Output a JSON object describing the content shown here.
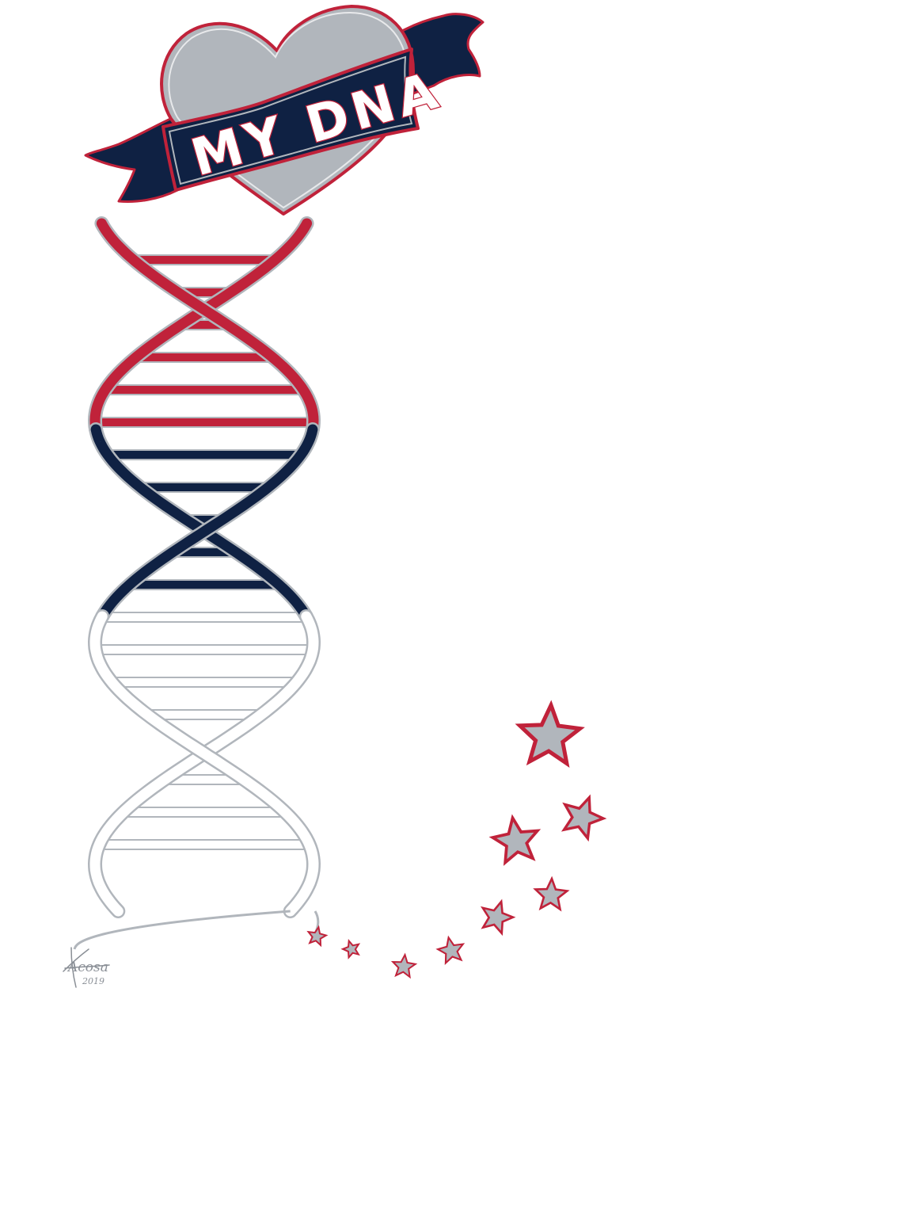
{
  "artwork": {
    "banner_text": "MY DNA",
    "signature": {
      "name": "Acosa",
      "year": "2019"
    }
  },
  "colors": {
    "red": "#c0223a",
    "navy": "#0f2143",
    "silver": "#b1b6bc",
    "white": "#ffffff"
  },
  "icons": {
    "heart": "heart-icon",
    "banner": "ribbon-banner",
    "helix": "dna-double-helix",
    "stars": "star-icon"
  }
}
